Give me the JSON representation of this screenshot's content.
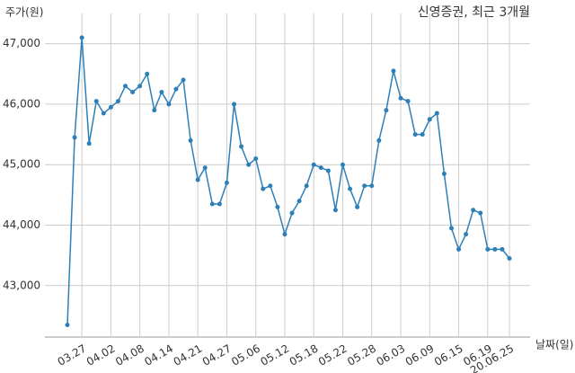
{
  "chart_data": {
    "type": "line",
    "title": "신영증권, 최근 3개월",
    "y_label": "주가(원)",
    "x_label": "날짜(일)",
    "categories": [
      null,
      null,
      "03.27",
      null,
      null,
      null,
      "04.02",
      null,
      null,
      null,
      "04.08",
      null,
      null,
      null,
      "04.14",
      null,
      null,
      null,
      "04.21",
      null,
      null,
      null,
      "04.27",
      null,
      null,
      null,
      "05.06",
      null,
      null,
      null,
      "05.12",
      null,
      null,
      null,
      "05.18",
      null,
      null,
      null,
      "05.22",
      null,
      null,
      null,
      "05.28",
      null,
      null,
      null,
      "06.03",
      null,
      null,
      null,
      "06.09",
      null,
      null,
      null,
      "06.15",
      null,
      null,
      null,
      "06.19",
      null,
      null,
      "20.06.25"
    ],
    "series": [
      {
        "name": "신영증권",
        "color": "#2e7fb8",
        "values": [
          42350,
          45450,
          47100,
          45350,
          46050,
          45850,
          45950,
          46050,
          46300,
          46200,
          46300,
          46500,
          45900,
          46200,
          46000,
          46250,
          46400,
          45400,
          44750,
          44950,
          44350,
          44350,
          44700,
          46000,
          45300,
          45000,
          45100,
          44600,
          44650,
          44300,
          43850,
          44200,
          44400,
          44650,
          45000,
          44950,
          44900,
          44250,
          45000,
          44600,
          44300,
          44650,
          44650,
          45400,
          45900,
          46550,
          46100,
          46050,
          45500,
          45500,
          45750,
          45850,
          44850,
          43950,
          43600,
          43850,
          44250,
          44200,
          43600,
          43600,
          43600,
          43450
        ]
      }
    ],
    "ylim": [
      42150,
      47500
    ],
    "yticks": [
      {
        "value": 43000,
        "label": "43,000"
      },
      {
        "value": 44000,
        "label": "44,000"
      },
      {
        "value": 45000,
        "label": "45,000"
      },
      {
        "value": 46000,
        "label": "46,000"
      },
      {
        "value": 47000,
        "label": "47,000"
      }
    ],
    "grid": true
  }
}
